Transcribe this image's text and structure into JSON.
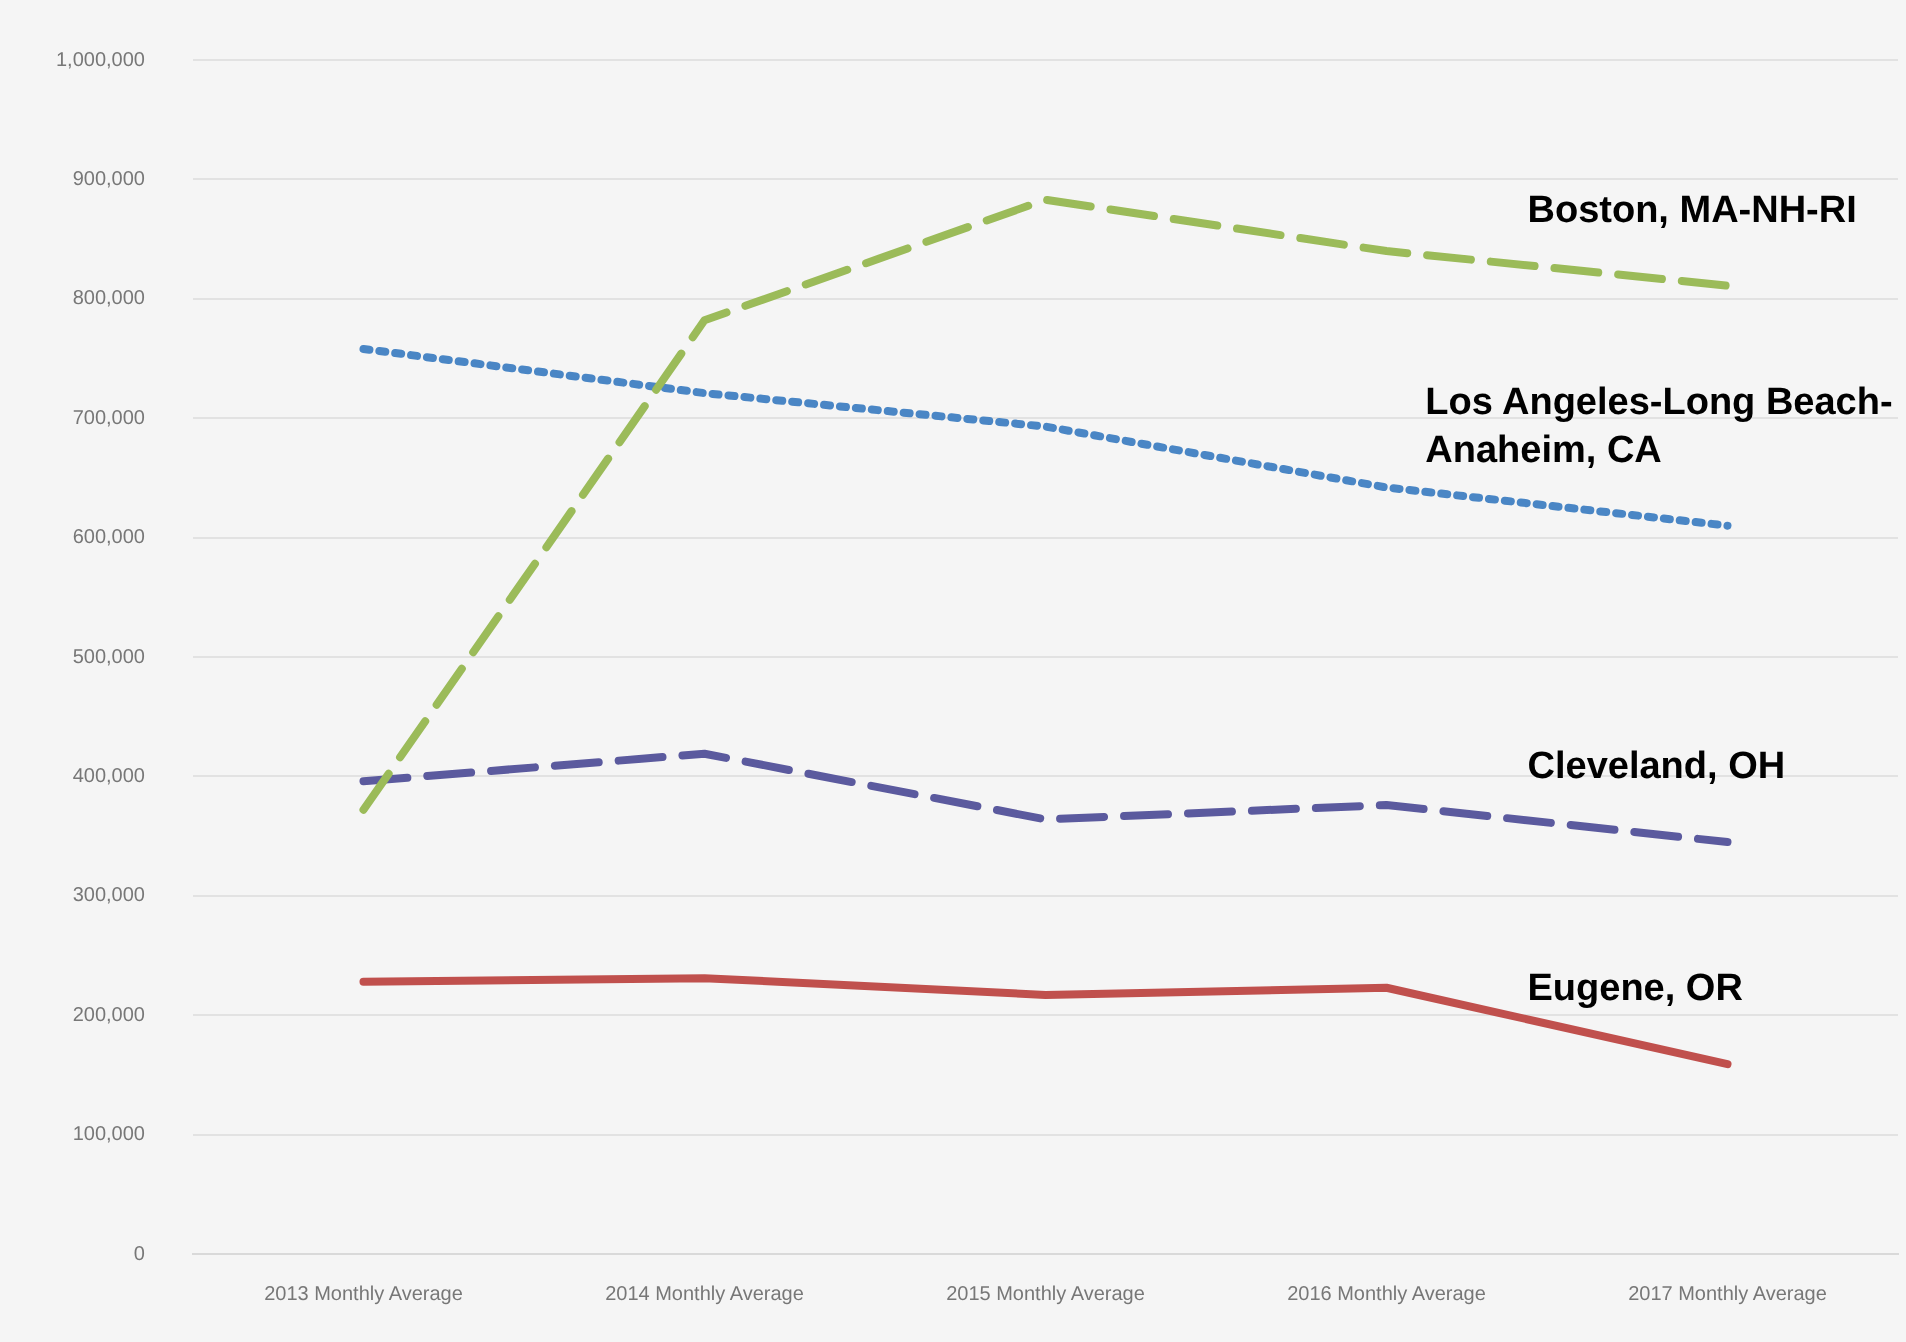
{
  "chart_data": {
    "type": "line",
    "categories": [
      "2013 Monthly Average",
      "2014 Monthly Average",
      "2015 Monthly Average",
      "2016 Monthly Average",
      "2017 Monthly Average"
    ],
    "series": [
      {
        "name": "Boston, MA-NH-RI",
        "color": "#9bbb59",
        "line_style": "dashed",
        "values": [
          372000,
          782000,
          883000,
          840000,
          811000
        ]
      },
      {
        "name": "Los Angeles-Long Beach-Anaheim, CA",
        "color": "#4a86c5",
        "line_style": "dotted",
        "values": [
          758000,
          721000,
          693000,
          642000,
          610000
        ]
      },
      {
        "name": "Cleveland, OH",
        "color": "#5b5a9e",
        "line_style": "dashed",
        "values": [
          396000,
          419000,
          364000,
          376000,
          345000
        ]
      },
      {
        "name": "Eugene, OR",
        "color": "#c0504d",
        "line_style": "solid",
        "values": [
          228000,
          231000,
          217000,
          223000,
          159000
        ]
      }
    ],
    "ylim": [
      0,
      1000000
    ],
    "yticks": [
      0,
      {
        "value": 100000,
        "label": "100,000"
      },
      {
        "value": 200000,
        "label": "200,000"
      },
      {
        "value": 300000,
        "label": "300,000"
      },
      {
        "value": 400000,
        "label": "400,000"
      },
      {
        "value": 500000,
        "label": "500,000"
      },
      {
        "value": 600000,
        "label": "600,000"
      },
      {
        "value": 700000,
        "label": "700,000"
      },
      {
        "value": 800000,
        "label": "800,000"
      },
      {
        "value": 900000,
        "label": "900,000"
      },
      {
        "value": 1000000,
        "label": "1,000,000"
      }
    ],
    "grid": "y",
    "legend": false,
    "marker": "none"
  }
}
